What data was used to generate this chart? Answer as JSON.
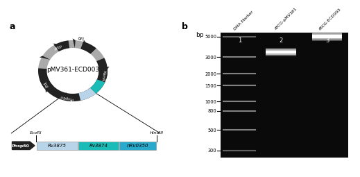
{
  "panel_a_label": "a",
  "panel_b_label": "b",
  "plasmid_name": "pMV361-ECD003",
  "phsp60_label": "Phsp60",
  "ecoRI_label": "EcoRI",
  "hindIII_label": "HindIII",
  "insert_labels": [
    "Rv3875",
    "Rv3874",
    "nRv0350"
  ],
  "insert_colors": [
    "#b8d4e8",
    "#1bbcb8",
    "#29aacc"
  ],
  "gel_bg_color": "#0a0a0a",
  "lane_labels": [
    "DNA Marker",
    "rBCG-pMV361",
    "rBCG-ECD003"
  ],
  "lane_numbers": [
    "1",
    "2",
    "3"
  ],
  "bp_label": "bp",
  "bp_ticks": [
    5000,
    3000,
    2000,
    1500,
    1000,
    800,
    500,
    300
  ],
  "lane2_band_bp": 3400,
  "lane3_band_bp": 5000,
  "plasmid_gray": "#aaaaaa",
  "plasmid_black": "#222222",
  "plasmid_insert_light": "#b8d4e8",
  "plasmid_insert_dark": "#1bbcb8",
  "marker_gray": "#888888",
  "marker_dark": "#555555"
}
